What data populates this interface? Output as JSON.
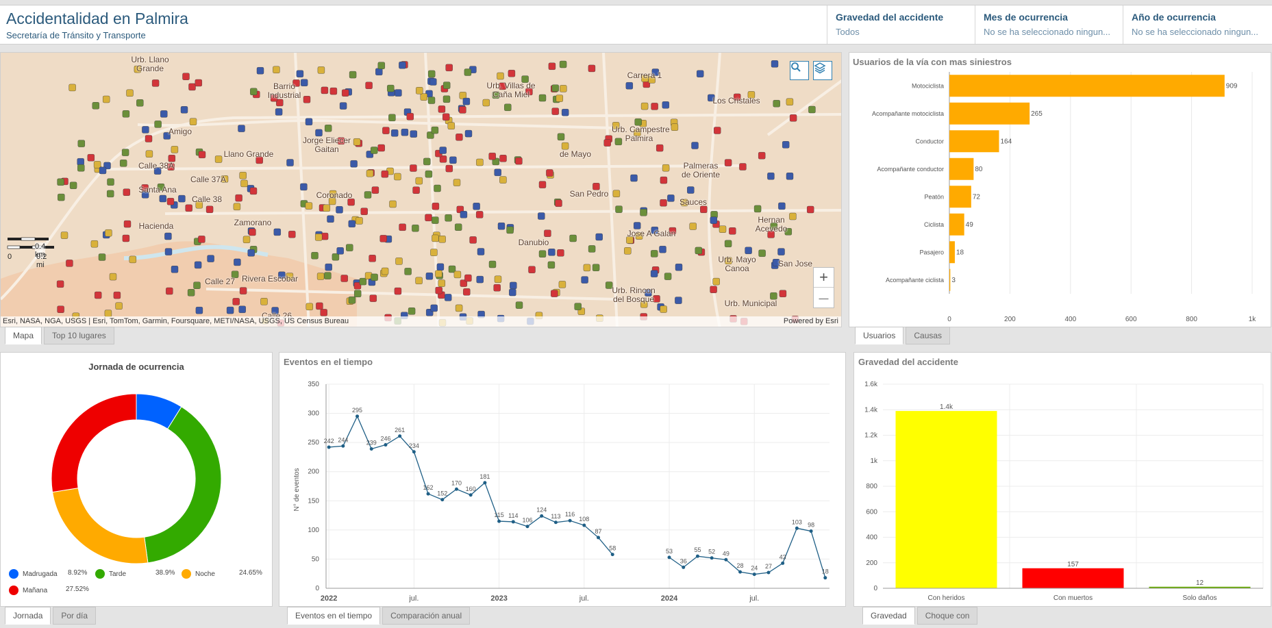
{
  "header": {
    "title": "Accidentalidad en Palmira",
    "subtitle": "Secretaría de Tránsito y Transporte",
    "filters": [
      {
        "title": "Gravedad del accidente",
        "value": "Todos"
      },
      {
        "title": "Mes de ocurrencia",
        "value": "No se ha seleccionado ningun..."
      },
      {
        "title": "Año de ocurrencia",
        "value": "No se ha seleccionado ningun..."
      }
    ]
  },
  "map": {
    "labels": [
      {
        "text": "Urb. Llano\nGrande",
        "x": 218,
        "y": 80
      },
      {
        "text": "Barrio\nIndustrial",
        "x": 414,
        "y": 119
      },
      {
        "text": "Urb. Villas de\nCaña Miel",
        "x": 745,
        "y": 118
      },
      {
        "text": "Los Cristales",
        "x": 1074,
        "y": 140
      },
      {
        "text": "Amigo",
        "x": 262,
        "y": 185
      },
      {
        "text": "Jorge Eliecer\nGaitan",
        "x": 476,
        "y": 198
      },
      {
        "text": "Urb. Campestre\nPalmira",
        "x": 932,
        "y": 182
      },
      {
        "text": "Llano Grande",
        "x": 362,
        "y": 218
      },
      {
        "text": "de Mayo",
        "x": 839,
        "y": 218
      },
      {
        "text": "Palmeras\nde Oriente",
        "x": 1022,
        "y": 235
      },
      {
        "text": "Calle 38A",
        "x": 227,
        "y": 235
      },
      {
        "text": "Calle 37A",
        "x": 303,
        "y": 255
      },
      {
        "text": "Santa Ana",
        "x": 229,
        "y": 270
      },
      {
        "text": "Calle 38",
        "x": 301,
        "y": 284
      },
      {
        "text": "Coronado",
        "x": 487,
        "y": 278
      },
      {
        "text": "San Pedro",
        "x": 859,
        "y": 276
      },
      {
        "text": "Sauces",
        "x": 1011,
        "y": 288
      },
      {
        "text": "Haciendа",
        "x": 227,
        "y": 323
      },
      {
        "text": "Zamorano",
        "x": 368,
        "y": 318
      },
      {
        "text": "Hernan\nAcevedo",
        "x": 1125,
        "y": 314
      },
      {
        "text": "Danubio",
        "x": 778,
        "y": 347
      },
      {
        "text": "Jose A Galan",
        "x": 950,
        "y": 334
      },
      {
        "text": "Urb. Mayo\nCanoa",
        "x": 1075,
        "y": 372
      },
      {
        "text": "San Jose",
        "x": 1160,
        "y": 378
      },
      {
        "text": "Rivera Escobar",
        "x": 392,
        "y": 400
      },
      {
        "text": "Urb. Rincon\ndel Bosque",
        "x": 924,
        "y": 417
      },
      {
        "text": "Urb. Municipal",
        "x": 1095,
        "y": 436
      },
      {
        "text": "Calle 27",
        "x": 320,
        "y": 404
      },
      {
        "text": "Calle 26",
        "x": 403,
        "y": 454
      },
      {
        "text": "Carrera 1",
        "x": 940,
        "y": 103
      }
    ],
    "scale": {
      "km": "0.4 km",
      "mi": "0.2 mi",
      "zero": "0"
    },
    "attribution": "Esri, NASA, NGA, USGS | Esri, TomTom, Garmin, Foursquare, METI/NASA, USGS, US Census Bureau",
    "powered": "Powered by Esri",
    "zoom_in": "+",
    "zoom_out": "—",
    "icons": [
      "search-icon",
      "layers-icon"
    ]
  },
  "map_tabs": [
    "Mapa",
    "Top 10 lugares"
  ],
  "usuarios": {
    "title": "Usuarios de la vía con mas siniestros",
    "color": "#ffaa00",
    "chart_data": {
      "type": "bar",
      "orientation": "horizontal",
      "categories": [
        "Motociclista",
        "Acompañante motociclista",
        "Conductor",
        "Acompañante conductor",
        "Peatón",
        "Ciclista",
        "Pasajero",
        "Acompañante ciclista"
      ],
      "values": [
        909,
        265,
        164,
        80,
        72,
        49,
        18,
        3
      ],
      "xticks": [
        "0",
        "200",
        "400",
        "600",
        "800",
        "1k"
      ],
      "xlim": [
        0,
        1000
      ]
    },
    "tabs": [
      "Usuarios",
      "Causas"
    ]
  },
  "jornada": {
    "title": "Jornada de ocurrencia",
    "chart_data": {
      "type": "pie",
      "donut": true,
      "slices": [
        {
          "name": "Madrugada",
          "percent": "8.92%",
          "value": 8.92,
          "color": "#0062ff"
        },
        {
          "name": "Tarde",
          "percent": "38.9%",
          "value": 38.9,
          "color": "#33aa00"
        },
        {
          "name": "Noche",
          "percent": "24.65%",
          "value": 24.65,
          "color": "#ffaa00"
        },
        {
          "name": "Mañana",
          "percent": "27.52%",
          "value": 27.52,
          "color": "#ee0000"
        }
      ]
    },
    "tabs": [
      "Jornada",
      "Por día"
    ]
  },
  "eventos": {
    "title": "Eventos en el tiempo",
    "ylabel": "N° de eventos",
    "color": "#1f5f86",
    "chart_data": {
      "type": "line",
      "x": [
        "2022-01",
        "2022-02",
        "2022-03",
        "2022-04",
        "2022-05",
        "2022-06",
        "2022-07",
        "2022-08",
        "2022-09",
        "2022-10",
        "2022-11",
        "2022-12",
        "2023-01",
        "2023-02",
        "2023-03",
        "2023-04",
        "2023-05",
        "2023-06",
        "2023-07",
        "2023-08",
        "2023-09",
        "2024-01",
        "2024-02",
        "2024-03",
        "2024-04",
        "2024-05",
        "2024-06",
        "2024-07",
        "2024-08",
        "2024-09",
        "2024-10",
        "2024-11",
        "2024-12"
      ],
      "values": [
        242,
        244,
        295,
        239,
        246,
        261,
        234,
        162,
        152,
        170,
        160,
        181,
        115,
        114,
        106,
        124,
        113,
        116,
        108,
        87,
        58,
        53,
        36,
        55,
        52,
        49,
        28,
        24,
        27,
        43,
        103,
        98,
        18
      ],
      "ylim": [
        0,
        350
      ],
      "yticks": [
        "0",
        "50",
        "100",
        "150",
        "200",
        "250",
        "300",
        "350"
      ],
      "xticks": [
        {
          "label": "2022",
          "date": "2022-01",
          "bold": true
        },
        {
          "label": "jul.",
          "date": "2022-07",
          "bold": false
        },
        {
          "label": "2023",
          "date": "2023-01",
          "bold": true
        },
        {
          "label": "jul.",
          "date": "2023-07",
          "bold": false
        },
        {
          "label": "2024",
          "date": "2024-01",
          "bold": true
        },
        {
          "label": "jul.",
          "date": "2024-07",
          "bold": false
        }
      ]
    },
    "tabs": [
      "Eventos en el tiempo",
      "Comparación anual"
    ]
  },
  "gravedad": {
    "title": "Gravedad del accidente",
    "chart_data": {
      "type": "bar",
      "categories": [
        "Con heridos",
        "Con muertos",
        "Solo daños"
      ],
      "values": [
        1390,
        157,
        12
      ],
      "labels": [
        "1.4k",
        "157",
        "12"
      ],
      "colors": [
        "#ffff00",
        "#ff0000",
        "#66aa00"
      ],
      "ylim": [
        0,
        1600
      ],
      "yticks": [
        "0",
        "200",
        "400",
        "600",
        "800",
        "1k",
        "1.2k",
        "1.4k",
        "1.6k"
      ]
    },
    "tabs": [
      "Gravedad",
      "Choque con"
    ]
  }
}
